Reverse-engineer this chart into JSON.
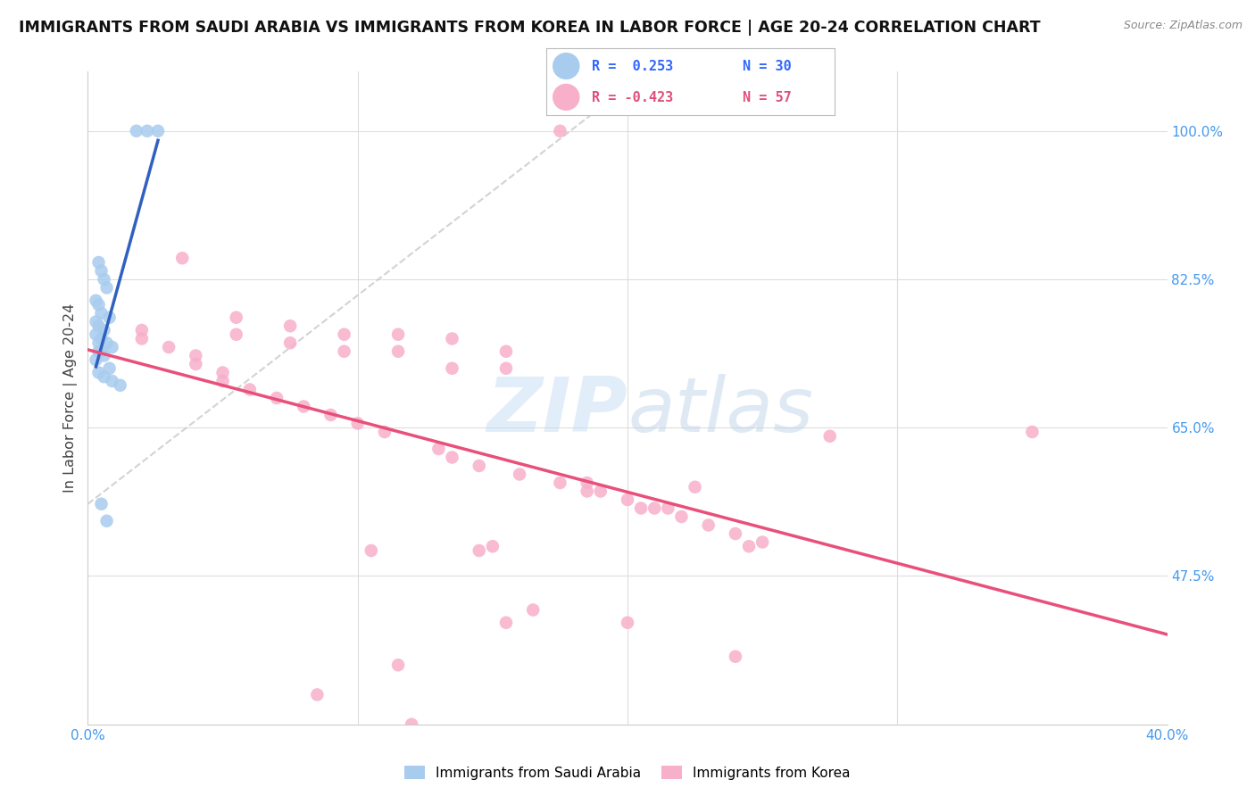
{
  "title": "IMMIGRANTS FROM SAUDI ARABIA VS IMMIGRANTS FROM KOREA IN LABOR FORCE | AGE 20-24 CORRELATION CHART",
  "source": "Source: ZipAtlas.com",
  "ylabel": "In Labor Force | Age 20-24",
  "ytick_labels": [
    "47.5%",
    "65.0%",
    "82.5%",
    "100.0%"
  ],
  "ytick_values": [
    0.475,
    0.65,
    0.825,
    1.0
  ],
  "xlim": [
    0.0,
    0.4
  ],
  "ylim": [
    0.3,
    1.07
  ],
  "color_blue": "#A8CCEE",
  "color_pink": "#F7AFCA",
  "color_blue_line": "#3060C0",
  "color_pink_line": "#E8507A",
  "color_dashed": "#C8C8C8",
  "saudi_x": [
    0.018,
    0.022,
    0.026,
    0.004,
    0.005,
    0.006,
    0.007,
    0.003,
    0.004,
    0.005,
    0.008,
    0.003,
    0.004,
    0.006,
    0.003,
    0.005,
    0.007,
    0.009,
    0.004,
    0.006,
    0.003,
    0.008,
    0.004,
    0.006,
    0.009,
    0.012,
    0.005,
    0.007,
    0.004,
    0.005
  ],
  "saudi_y": [
    1.0,
    1.0,
    1.0,
    0.845,
    0.835,
    0.825,
    0.815,
    0.8,
    0.795,
    0.785,
    0.78,
    0.775,
    0.77,
    0.765,
    0.76,
    0.755,
    0.75,
    0.745,
    0.74,
    0.735,
    0.73,
    0.72,
    0.715,
    0.71,
    0.705,
    0.7,
    0.56,
    0.54,
    0.75,
    0.74
  ],
  "korea_x": [
    0.175,
    0.035,
    0.055,
    0.055,
    0.075,
    0.075,
    0.095,
    0.095,
    0.115,
    0.115,
    0.135,
    0.155,
    0.155,
    0.02,
    0.02,
    0.03,
    0.04,
    0.04,
    0.05,
    0.05,
    0.06,
    0.07,
    0.08,
    0.09,
    0.1,
    0.11,
    0.13,
    0.135,
    0.145,
    0.16,
    0.185,
    0.19,
    0.2,
    0.21,
    0.22,
    0.23,
    0.24,
    0.25,
    0.275,
    0.185,
    0.205,
    0.135,
    0.245,
    0.215,
    0.105,
    0.145,
    0.175,
    0.225,
    0.35,
    0.2,
    0.24,
    0.165,
    0.115,
    0.12,
    0.085,
    0.155,
    0.15
  ],
  "korea_y": [
    1.0,
    0.85,
    0.78,
    0.76,
    0.77,
    0.75,
    0.76,
    0.74,
    0.76,
    0.74,
    0.755,
    0.74,
    0.72,
    0.765,
    0.755,
    0.745,
    0.735,
    0.725,
    0.715,
    0.705,
    0.695,
    0.685,
    0.675,
    0.665,
    0.655,
    0.645,
    0.625,
    0.615,
    0.605,
    0.595,
    0.585,
    0.575,
    0.565,
    0.555,
    0.545,
    0.535,
    0.525,
    0.515,
    0.64,
    0.575,
    0.555,
    0.72,
    0.51,
    0.555,
    0.505,
    0.505,
    0.585,
    0.58,
    0.645,
    0.42,
    0.38,
    0.435,
    0.37,
    0.3,
    0.335,
    0.42,
    0.51
  ],
  "legend_line1_r": "R =  0.253",
  "legend_line1_n": "N = 30",
  "legend_line2_r": "R = -0.423",
  "legend_line2_n": "N = 57",
  "bottom_legend1": "Immigrants from Saudi Arabia",
  "bottom_legend2": "Immigrants from Korea"
}
